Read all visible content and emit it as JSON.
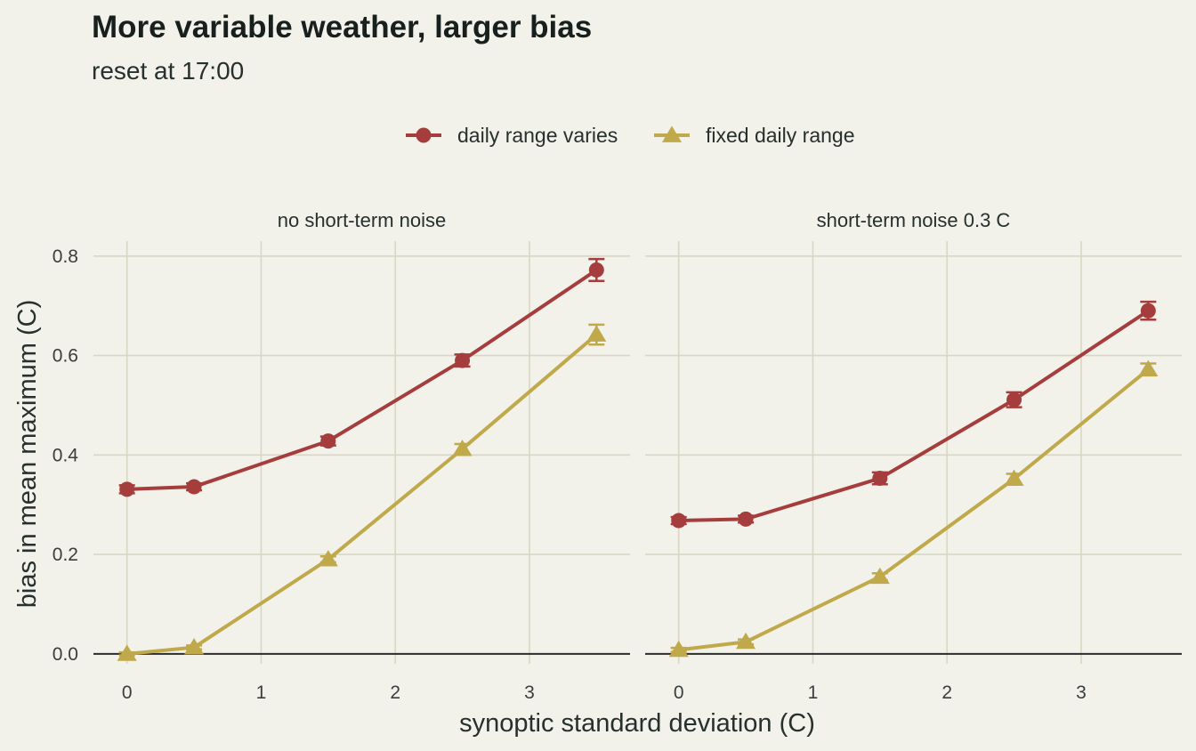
{
  "title": "More variable weather, larger bias",
  "subtitle": "reset at 17:00",
  "legend": {
    "items": [
      {
        "label": "daily range varies",
        "marker": "circle",
        "color": "#a63d3d"
      },
      {
        "label": "fixed daily range",
        "marker": "triangle",
        "color": "#c0a94a"
      }
    ]
  },
  "axes": {
    "xlabel": "synoptic standard deviation (C)",
    "ylabel": "bias in mean maximum (C)",
    "xticks": [
      "0",
      "1",
      "2",
      "3"
    ],
    "yticks": [
      "0.0",
      "0.2",
      "0.4",
      "0.6",
      "0.8"
    ]
  },
  "chart_data": {
    "type": "line",
    "facets": [
      "no short-term noise",
      "short-term noise 0.3 C"
    ],
    "x": [
      0,
      0.5,
      1.5,
      2.5,
      3.5
    ],
    "xlim": [
      -0.25,
      3.75
    ],
    "ylim": [
      -0.02,
      0.83
    ],
    "grid": true,
    "legend_position": "top",
    "panels": [
      {
        "facet": "no short-term noise",
        "series": [
          {
            "name": "daily range varies",
            "values": [
              0.331,
              0.336,
              0.428,
              0.59,
              0.772
            ],
            "errors": [
              0.008,
              0.007,
              0.009,
              0.012,
              0.022
            ]
          },
          {
            "name": "fixed daily range",
            "values": [
              0.0,
              0.013,
              0.19,
              0.412,
              0.642
            ],
            "errors": [
              0.003,
              0.004,
              0.006,
              0.01,
              0.02
            ]
          }
        ]
      },
      {
        "facet": "short-term noise 0.3 C",
        "series": [
          {
            "name": "daily range varies",
            "values": [
              0.268,
              0.271,
              0.353,
              0.511,
              0.69
            ],
            "errors": [
              0.007,
              0.007,
              0.012,
              0.015,
              0.018
            ]
          },
          {
            "name": "fixed daily range",
            "values": [
              0.008,
              0.024,
              0.155,
              0.352,
              0.572
            ],
            "errors": [
              0.004,
              0.005,
              0.007,
              0.01,
              0.012
            ]
          }
        ]
      }
    ]
  }
}
